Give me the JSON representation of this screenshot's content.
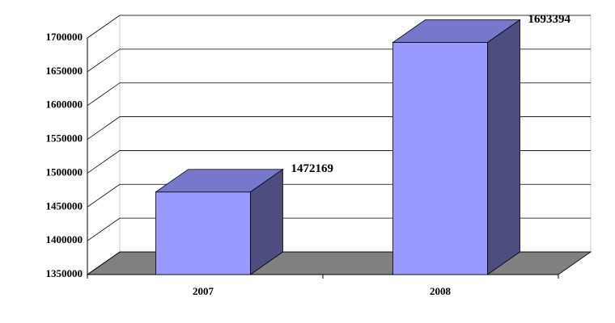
{
  "chart_data": {
    "type": "bar3d",
    "categories": [
      "2007",
      "2008"
    ],
    "values": [
      1472169,
      1693394
    ],
    "ylim": [
      1350000,
      1700000
    ],
    "yticks": [
      1350000,
      1400000,
      1450000,
      1500000,
      1550000,
      1600000,
      1650000,
      1700000
    ],
    "color": "#9999ff",
    "grid": true
  }
}
